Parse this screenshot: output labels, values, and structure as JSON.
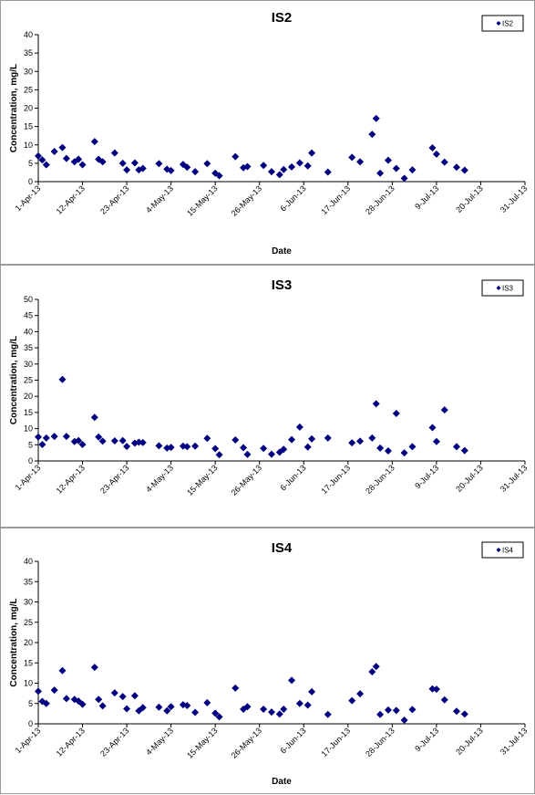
{
  "chart_data": [
    {
      "type": "scatter",
      "title": "IS2",
      "xlabel": "Date",
      "ylabel": "Concentration, mg/L",
      "ylim": [
        0,
        40
      ],
      "yticks": [
        0,
        5,
        10,
        15,
        20,
        25,
        30,
        35,
        40
      ],
      "xlim": [
        "2013-04-01",
        "2013-07-31"
      ],
      "xtick_labels": [
        "1-Apr-13",
        "12-Apr-13",
        "23-Apr-13",
        "4-May-13",
        "15-May-13",
        "26-May-13",
        "6-Jun-13",
        "17-Jun-13",
        "28-Jun-13",
        "9-Jul-13",
        "20-Jul-13",
        "31-Jul-13"
      ],
      "legend": "top-right",
      "color": "#000080",
      "series": [
        {
          "name": "IS2",
          "points": [
            [
              "2013-04-01",
              7.0
            ],
            [
              "2013-04-02",
              5.9
            ],
            [
              "2013-04-03",
              4.6
            ],
            [
              "2013-04-05",
              8.2
            ],
            [
              "2013-04-07",
              9.3
            ],
            [
              "2013-04-08",
              6.3
            ],
            [
              "2013-04-10",
              5.4
            ],
            [
              "2013-04-11",
              6.1
            ],
            [
              "2013-04-12",
              4.6
            ],
            [
              "2013-04-15",
              10.9
            ],
            [
              "2013-04-16",
              6.1
            ],
            [
              "2013-04-17",
              5.4
            ],
            [
              "2013-04-20",
              7.8
            ],
            [
              "2013-04-22",
              5.0
            ],
            [
              "2013-04-23",
              3.2
            ],
            [
              "2013-04-25",
              5.1
            ],
            [
              "2013-04-26",
              3.2
            ],
            [
              "2013-04-27",
              3.6
            ],
            [
              "2013-05-01",
              4.9
            ],
            [
              "2013-05-03",
              3.4
            ],
            [
              "2013-05-04",
              3.0
            ],
            [
              "2013-05-07",
              4.7
            ],
            [
              "2013-05-08",
              3.9
            ],
            [
              "2013-05-10",
              2.7
            ],
            [
              "2013-05-13",
              4.9
            ],
            [
              "2013-05-15",
              2.3
            ],
            [
              "2013-05-16",
              1.6
            ],
            [
              "2013-05-20",
              6.8
            ],
            [
              "2013-05-22",
              3.8
            ],
            [
              "2013-05-23",
              4.1
            ],
            [
              "2013-05-27",
              4.4
            ],
            [
              "2013-05-29",
              2.7
            ],
            [
              "2013-05-31",
              1.9
            ],
            [
              "2013-06-01",
              3.3
            ],
            [
              "2013-06-03",
              4.0
            ],
            [
              "2013-06-05",
              5.1
            ],
            [
              "2013-06-07",
              4.3
            ],
            [
              "2013-06-08",
              7.8
            ],
            [
              "2013-06-12",
              2.6
            ],
            [
              "2013-06-18",
              6.6
            ],
            [
              "2013-06-20",
              5.4
            ],
            [
              "2013-06-23",
              12.9
            ],
            [
              "2013-06-24",
              17.2
            ],
            [
              "2013-06-25",
              2.3
            ],
            [
              "2013-06-27",
              5.8
            ],
            [
              "2013-06-29",
              3.6
            ],
            [
              "2013-07-01",
              0.9
            ],
            [
              "2013-07-03",
              3.2
            ],
            [
              "2013-07-08",
              9.2
            ],
            [
              "2013-07-09",
              7.5
            ],
            [
              "2013-07-11",
              5.3
            ],
            [
              "2013-07-14",
              3.9
            ],
            [
              "2013-07-16",
              3.1
            ]
          ]
        }
      ]
    },
    {
      "type": "scatter",
      "title": "IS3",
      "xlabel": "",
      "ylabel": "Concentration, mg/L",
      "ylim": [
        0,
        50
      ],
      "yticks": [
        0,
        5,
        10,
        15,
        20,
        25,
        30,
        35,
        40,
        45,
        50
      ],
      "xlim": [
        "2013-04-01",
        "2013-07-31"
      ],
      "xtick_labels": [
        "1-Apr-13",
        "12-Apr-13",
        "23-Apr-13",
        "4-May-13",
        "15-May-13",
        "26-May-13",
        "6-Jun-13",
        "17-Jun-13",
        "28-Jun-13",
        "9-Jul-13",
        "20-Jul-13",
        "31-Jul-13"
      ],
      "legend": "top-right",
      "color": "#000080",
      "series": [
        {
          "name": "IS3",
          "points": [
            [
              "2013-04-01",
              7.4
            ],
            [
              "2013-04-02",
              5.1
            ],
            [
              "2013-04-03",
              7.1
            ],
            [
              "2013-04-05",
              7.6
            ],
            [
              "2013-04-07",
              25.2
            ],
            [
              "2013-04-08",
              7.6
            ],
            [
              "2013-04-10",
              6.0
            ],
            [
              "2013-04-11",
              6.3
            ],
            [
              "2013-04-12",
              5.1
            ],
            [
              "2013-04-15",
              13.5
            ],
            [
              "2013-04-16",
              7.4
            ],
            [
              "2013-04-17",
              6.1
            ],
            [
              "2013-04-20",
              6.2
            ],
            [
              "2013-04-22",
              6.3
            ],
            [
              "2013-04-23",
              4.5
            ],
            [
              "2013-04-25",
              5.5
            ],
            [
              "2013-04-26",
              5.8
            ],
            [
              "2013-04-27",
              5.7
            ],
            [
              "2013-05-01",
              4.7
            ],
            [
              "2013-05-03",
              4.0
            ],
            [
              "2013-05-04",
              4.2
            ],
            [
              "2013-05-07",
              4.6
            ],
            [
              "2013-05-08",
              4.4
            ],
            [
              "2013-05-10",
              4.6
            ],
            [
              "2013-05-13",
              7.0
            ],
            [
              "2013-05-15",
              3.8
            ],
            [
              "2013-05-16",
              1.9
            ],
            [
              "2013-05-20",
              6.5
            ],
            [
              "2013-05-22",
              4.1
            ],
            [
              "2013-05-23",
              2.0
            ],
            [
              "2013-05-27",
              3.9
            ],
            [
              "2013-05-29",
              2.1
            ],
            [
              "2013-05-31",
              2.7
            ],
            [
              "2013-06-01",
              3.6
            ],
            [
              "2013-06-03",
              6.6
            ],
            [
              "2013-06-05",
              10.5
            ],
            [
              "2013-06-07",
              4.3
            ],
            [
              "2013-06-08",
              6.8
            ],
            [
              "2013-06-12",
              7.1
            ],
            [
              "2013-06-18",
              5.6
            ],
            [
              "2013-06-20",
              6.1
            ],
            [
              "2013-06-23",
              7.1
            ],
            [
              "2013-06-24",
              17.7
            ],
            [
              "2013-06-25",
              4.0
            ],
            [
              "2013-06-27",
              3.1
            ],
            [
              "2013-06-29",
              14.7
            ],
            [
              "2013-07-01",
              2.5
            ],
            [
              "2013-07-03",
              4.4
            ],
            [
              "2013-07-08",
              10.3
            ],
            [
              "2013-07-09",
              6.0
            ],
            [
              "2013-07-11",
              15.8
            ],
            [
              "2013-07-14",
              4.4
            ],
            [
              "2013-07-16",
              3.2
            ]
          ]
        }
      ]
    },
    {
      "type": "scatter",
      "title": "IS4",
      "xlabel": "Date",
      "ylabel": "Concentration, mg/L",
      "ylim": [
        0,
        40
      ],
      "yticks": [
        0,
        5,
        10,
        15,
        20,
        25,
        30,
        35,
        40
      ],
      "xlim": [
        "2013-04-01",
        "2013-07-31"
      ],
      "xtick_labels": [
        "1-Apr-13",
        "12-Apr-13",
        "23-Apr-13",
        "4-May-13",
        "15-May-13",
        "26-May-13",
        "6-Jun-13",
        "17-Jun-13",
        "28-Jun-13",
        "9-Jul-13",
        "20-Jul-13",
        "31-Jul-13"
      ],
      "legend": "top-right",
      "color": "#000080",
      "series": [
        {
          "name": "IS4",
          "points": [
            [
              "2013-04-01",
              8.0
            ],
            [
              "2013-04-02",
              5.5
            ],
            [
              "2013-04-03",
              5.0
            ],
            [
              "2013-04-05",
              8.3
            ],
            [
              "2013-04-07",
              13.1
            ],
            [
              "2013-04-08",
              6.2
            ],
            [
              "2013-04-10",
              6.0
            ],
            [
              "2013-04-11",
              5.6
            ],
            [
              "2013-04-12",
              4.8
            ],
            [
              "2013-04-15",
              13.9
            ],
            [
              "2013-04-16",
              6.0
            ],
            [
              "2013-04-17",
              4.4
            ],
            [
              "2013-04-20",
              7.6
            ],
            [
              "2013-04-22",
              6.7
            ],
            [
              "2013-04-23",
              3.7
            ],
            [
              "2013-04-25",
              6.9
            ],
            [
              "2013-04-26",
              3.2
            ],
            [
              "2013-04-27",
              4.0
            ],
            [
              "2013-05-01",
              4.1
            ],
            [
              "2013-05-03",
              3.2
            ],
            [
              "2013-05-04",
              4.2
            ],
            [
              "2013-05-07",
              4.7
            ],
            [
              "2013-05-08",
              4.5
            ],
            [
              "2013-05-10",
              2.8
            ],
            [
              "2013-05-13",
              5.2
            ],
            [
              "2013-05-15",
              2.6
            ],
            [
              "2013-05-16",
              1.7
            ],
            [
              "2013-05-20",
              8.8
            ],
            [
              "2013-05-22",
              3.6
            ],
            [
              "2013-05-23",
              4.2
            ],
            [
              "2013-05-27",
              3.6
            ],
            [
              "2013-05-29",
              2.9
            ],
            [
              "2013-05-31",
              2.4
            ],
            [
              "2013-06-01",
              3.6
            ],
            [
              "2013-06-03",
              10.7
            ],
            [
              "2013-06-05",
              5.0
            ],
            [
              "2013-06-07",
              4.6
            ],
            [
              "2013-06-08",
              7.9
            ],
            [
              "2013-06-12",
              2.3
            ],
            [
              "2013-06-18",
              5.7
            ],
            [
              "2013-06-20",
              7.4
            ],
            [
              "2013-06-23",
              12.8
            ],
            [
              "2013-06-24",
              14.1
            ],
            [
              "2013-06-25",
              2.3
            ],
            [
              "2013-06-27",
              3.4
            ],
            [
              "2013-06-29",
              3.3
            ],
            [
              "2013-07-01",
              0.9
            ],
            [
              "2013-07-03",
              3.5
            ],
            [
              "2013-07-08",
              8.6
            ],
            [
              "2013-07-09",
              8.5
            ],
            [
              "2013-07-11",
              5.9
            ],
            [
              "2013-07-14",
              3.1
            ],
            [
              "2013-07-16",
              2.4
            ]
          ]
        }
      ]
    }
  ]
}
